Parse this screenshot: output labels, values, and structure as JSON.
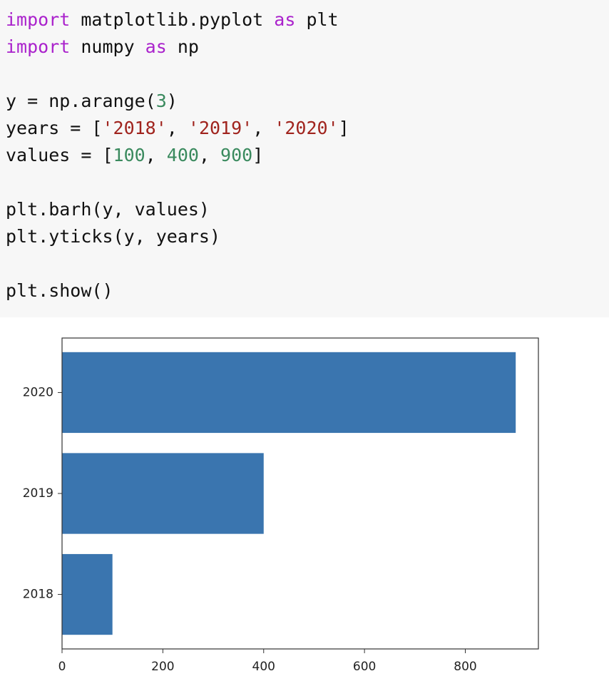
{
  "code": {
    "lines": [
      [
        "import",
        " matplotlib.pyplot ",
        "as",
        " plt"
      ],
      [
        "import",
        " numpy ",
        "as",
        " np"
      ],
      [
        "y = np.arange(",
        "3",
        ")"
      ],
      [
        "years = [",
        "'2018'",
        ", ",
        "'2019'",
        ", ",
        "'2020'",
        "]"
      ],
      [
        "values = [",
        "100",
        ", ",
        "400",
        ", ",
        "900",
        "]"
      ],
      [
        "plt.barh(y, values)"
      ],
      [
        "plt.yticks(y, years)"
      ],
      [
        "plt.show()"
      ]
    ]
  },
  "chart_data": {
    "type": "bar",
    "orientation": "horizontal",
    "categories": [
      "2018",
      "2019",
      "2020"
    ],
    "values": [
      100,
      400,
      900
    ],
    "color": "#3a75af",
    "xlim": [
      0,
      945
    ],
    "xticks": [
      0,
      200,
      400,
      600,
      800
    ]
  }
}
